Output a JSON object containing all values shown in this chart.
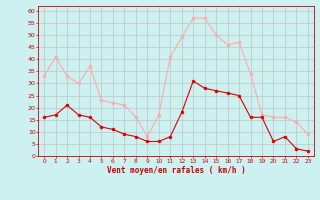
{
  "x": [
    0,
    1,
    2,
    3,
    4,
    5,
    6,
    7,
    8,
    9,
    10,
    11,
    12,
    13,
    14,
    15,
    16,
    17,
    18,
    19,
    20,
    21,
    22,
    23
  ],
  "vent_moyen": [
    16,
    17,
    21,
    17,
    16,
    12,
    11,
    9,
    8,
    6,
    6,
    8,
    18,
    31,
    28,
    27,
    26,
    25,
    16,
    16,
    6,
    8,
    3,
    2
  ],
  "rafales": [
    33,
    41,
    33,
    30,
    37,
    23,
    22,
    21,
    16,
    8,
    17,
    41,
    49,
    57,
    57,
    50,
    46,
    47,
    34,
    17,
    16,
    16,
    14,
    9
  ],
  "color_moyen": "#dd0000",
  "color_rafales": "#ffaaaa",
  "bg_color": "#cdf0f0",
  "grid_color": "#bbbbbb",
  "xlabel": "Vent moyen/en rafales ( km/h )",
  "yticks": [
    0,
    5,
    10,
    15,
    20,
    25,
    30,
    35,
    40,
    45,
    50,
    55,
    60
  ],
  "ylim": [
    0,
    62
  ],
  "xlim": [
    -0.5,
    23.5
  ],
  "tick_color": "#cc0000",
  "label_color": "#cc0000"
}
